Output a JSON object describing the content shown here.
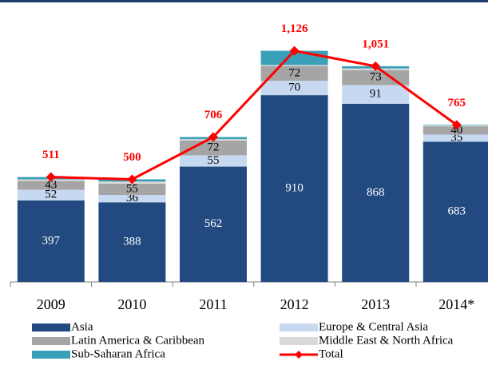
{
  "chart_data": {
    "type": "stacked_bar_line",
    "categories": [
      "2009",
      "2010",
      "2011",
      "2012",
      "2013",
      "2014*"
    ],
    "series": [
      {
        "name": "Asia",
        "color": "#234a80",
        "label_color": "#ffffff",
        "show_labels": true,
        "values": [
          397,
          388,
          562,
          910,
          868,
          683
        ]
      },
      {
        "name": "Europe & Central Asia",
        "color": "#c6d9f1",
        "label_color": "#000000",
        "show_labels": true,
        "values": [
          52,
          36,
          55,
          70,
          91,
          35
        ]
      },
      {
        "name": "Latin America & Caribbean",
        "color": "#a5a5a5",
        "label_color": "#000000",
        "show_labels": true,
        "values": [
          43,
          55,
          72,
          72,
          73,
          40
        ]
      },
      {
        "name": "Middle East & North Africa",
        "color": "#d9d9d9",
        "show_labels": false,
        "values": [
          8,
          10,
          7,
          5,
          8,
          4
        ]
      },
      {
        "name": "Sub-Saharan Africa",
        "color": "#3aa0b8",
        "show_labels": false,
        "values": [
          11,
          11,
          10,
          69,
          11,
          3
        ]
      }
    ],
    "total": {
      "name": "Total",
      "color": "#ff0000",
      "values": [
        511,
        500,
        706,
        1126,
        1051,
        765
      ],
      "value_labels": [
        "511",
        "500",
        "706",
        "1,126",
        "1,051",
        "765"
      ]
    },
    "ylim": [
      0,
      1140
    ]
  }
}
